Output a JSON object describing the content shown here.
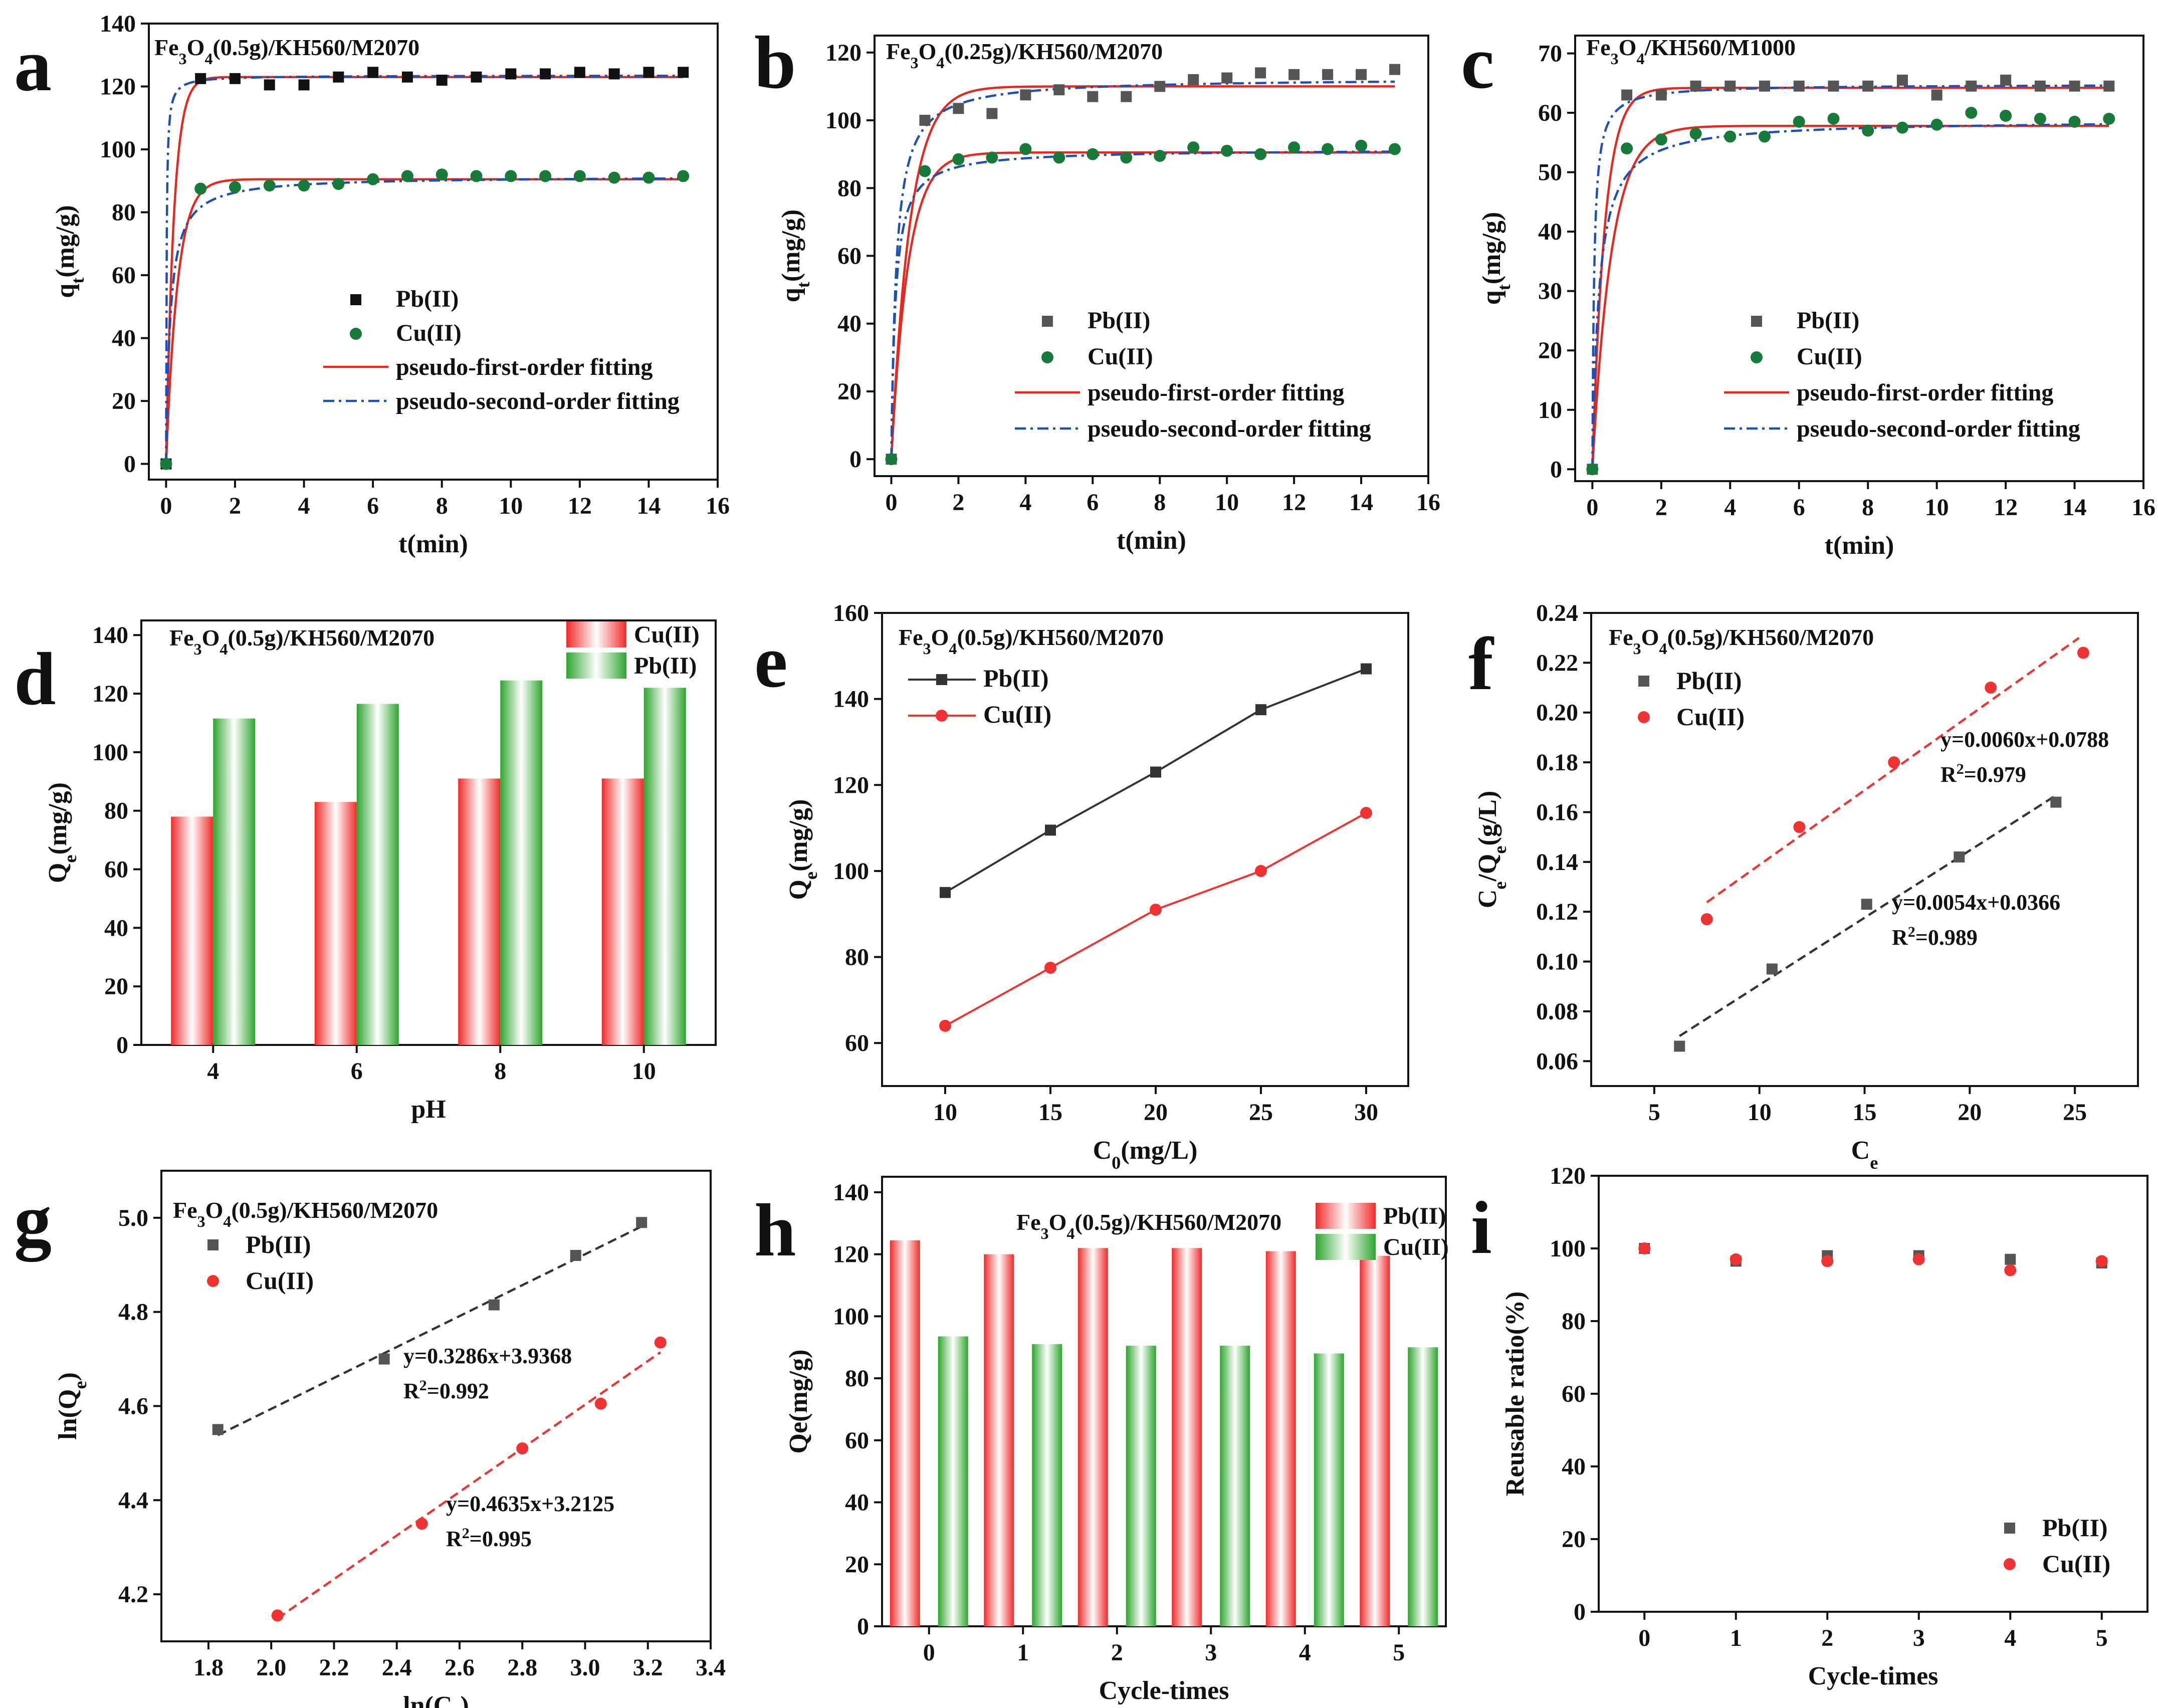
{
  "chart_data": [
    {
      "id": "a",
      "panel_letter": "a",
      "type": "scatter",
      "title_parts": [
        "Fe",
        "3",
        "O",
        "4",
        "(0.5g)/KH560/M2070"
      ],
      "xlabel": "t(min)",
      "ylabel_main": "q",
      "ylabel_sub": "t",
      "ylabel_end": "(mg/g)",
      "xlim": [
        -0.5,
        16
      ],
      "ylim": [
        -5,
        140
      ],
      "xticks": [
        0,
        2,
        4,
        6,
        8,
        10,
        12,
        14,
        16
      ],
      "yticks": [
        0,
        20,
        40,
        60,
        80,
        100,
        120,
        140
      ],
      "legend": [
        "Pb(II)",
        "Cu(II)",
        "pseudo-first-order fitting",
        "pseudo-second-order fitting"
      ],
      "series": [
        {
          "name": "Pb(II)",
          "marker": "square",
          "color": "#111111",
          "x": [
            0,
            1,
            2,
            3,
            4,
            5,
            6,
            7,
            8,
            9,
            10,
            11,
            12,
            13,
            14,
            15
          ],
          "y": [
            0,
            122.5,
            122.5,
            120.5,
            120.5,
            123,
            124.5,
            123,
            122,
            123,
            124,
            124,
            124.5,
            124,
            124.5,
            124.5
          ]
        },
        {
          "name": "Cu(II)",
          "marker": "circle",
          "color": "#177a3a",
          "x": [
            0,
            1,
            2,
            3,
            4,
            5,
            6,
            7,
            8,
            9,
            10,
            11,
            12,
            13,
            14,
            15
          ],
          "y": [
            0,
            87.5,
            88,
            88.5,
            88.5,
            89,
            90.5,
            91.5,
            92,
            91.5,
            91.5,
            91.5,
            91.5,
            91,
            91,
            91.5
          ]
        }
      ],
      "fits": [
        {
          "name": "pseudo-first-order fitting",
          "kind": "pfo",
          "qe": 123,
          "k": 4.5,
          "color": "#e8281e"
        },
        {
          "name": "pseudo-second-order fitting",
          "kind": "pso",
          "qe": 123.5,
          "k": 0.6,
          "color": "#1f4fb4"
        },
        {
          "name": "pseudo-first-order fitting",
          "kind": "pfo",
          "qe": 90.5,
          "k": 3.0,
          "color": "#e8281e"
        },
        {
          "name": "pseudo-second-order fitting",
          "kind": "pso",
          "qe": 91.5,
          "k": 0.09,
          "color": "#1f4fb4"
        }
      ]
    },
    {
      "id": "b",
      "panel_letter": "b",
      "type": "scatter",
      "title_parts": [
        "Fe",
        "3",
        "O",
        "4",
        "(0.25g)/KH560/M2070"
      ],
      "xlabel": "t(min)",
      "ylabel_main": "q",
      "ylabel_sub": "t",
      "ylabel_end": "(mg/g)",
      "xlim": [
        -0.5,
        16
      ],
      "ylim": [
        -5,
        125
      ],
      "xticks": [
        0,
        2,
        4,
        6,
        8,
        10,
        12,
        14,
        16
      ],
      "yticks": [
        0,
        20,
        40,
        60,
        80,
        100,
        120
      ],
      "legend": [
        "Pb(II)",
        "Cu(II)",
        "pseudo-first-order fitting",
        "pseudo-second-order fitting"
      ],
      "series": [
        {
          "name": "Pb(II)",
          "marker": "square",
          "color": "#555555",
          "x": [
            0,
            1,
            2,
            3,
            4,
            5,
            6,
            7,
            8,
            9,
            10,
            11,
            12,
            13,
            14,
            15
          ],
          "y": [
            0,
            100,
            103.5,
            102,
            107.5,
            109,
            107,
            107,
            110,
            112,
            112.5,
            114,
            113.5,
            113.5,
            113.5,
            115
          ]
        },
        {
          "name": "Cu(II)",
          "marker": "circle",
          "color": "#177a3a",
          "x": [
            0,
            1,
            2,
            3,
            4,
            5,
            6,
            7,
            8,
            9,
            10,
            11,
            12,
            13,
            14,
            15
          ],
          "y": [
            0,
            85,
            88.5,
            89,
            91.5,
            89,
            90,
            89,
            89.5,
            92,
            91,
            90,
            92,
            91.5,
            92.5,
            91.5
          ]
        }
      ],
      "fits": [
        {
          "name": "pseudo-first-order fitting",
          "kind": "pfo",
          "qe": 110,
          "k": 1.8,
          "color": "#e8281e"
        },
        {
          "name": "pseudo-second-order fitting",
          "kind": "pso",
          "qe": 112.5,
          "k": 0.06,
          "color": "#1f4fb4"
        },
        {
          "name": "pseudo-first-order fitting",
          "kind": "pfo",
          "qe": 90.5,
          "k": 2.0,
          "color": "#e8281e"
        },
        {
          "name": "pseudo-second-order fitting",
          "kind": "pso",
          "qe": 91.5,
          "k": 0.09,
          "color": "#1f4fb4"
        }
      ]
    },
    {
      "id": "c",
      "panel_letter": "c",
      "type": "scatter",
      "title_parts": [
        "Fe",
        "3",
        "O",
        "4",
        "/KH560/M1000"
      ],
      "xlabel": "t(min)",
      "ylabel_main": "q",
      "ylabel_sub": "t",
      "ylabel_end": "(mg/g)",
      "xlim": [
        -0.5,
        16
      ],
      "ylim": [
        -2,
        73
      ],
      "xticks": [
        0,
        2,
        4,
        6,
        8,
        10,
        12,
        14,
        16
      ],
      "yticks": [
        0,
        10,
        20,
        30,
        40,
        50,
        60,
        70
      ],
      "legend": [
        "Pb(II)",
        "Cu(II)",
        "pseudo-first-order fitting",
        "pseudo-second-order fitting"
      ],
      "series": [
        {
          "name": "Pb(II)",
          "marker": "square",
          "color": "#555555",
          "x": [
            0,
            1,
            2,
            3,
            4,
            5,
            6,
            7,
            8,
            9,
            10,
            11,
            12,
            13,
            14,
            15
          ],
          "y": [
            0,
            63,
            63,
            64.5,
            64.5,
            64.5,
            64.5,
            64.5,
            64.5,
            65.5,
            63,
            64.5,
            65.5,
            64.5,
            64.5,
            64.5
          ]
        },
        {
          "name": "Cu(II)",
          "marker": "circle",
          "color": "#177a3a",
          "x": [
            0,
            1,
            2,
            3,
            4,
            5,
            6,
            7,
            8,
            9,
            10,
            11,
            12,
            13,
            14,
            15
          ],
          "y": [
            0,
            54,
            55.5,
            56.5,
            56,
            56,
            58.5,
            59,
            57,
            57.5,
            58,
            60,
            59.5,
            59,
            58.5,
            59
          ]
        }
      ],
      "fits": [
        {
          "name": "pseudo-first-order fitting",
          "kind": "pfo",
          "qe": 64.2,
          "k": 2.8,
          "color": "#e8281e"
        },
        {
          "name": "pseudo-second-order fitting",
          "kind": "pso",
          "qe": 64.8,
          "k": 0.3,
          "color": "#1f4fb4"
        },
        {
          "name": "pseudo-first-order fitting",
          "kind": "pfo",
          "qe": 57.8,
          "k": 1.8,
          "color": "#e8281e"
        },
        {
          "name": "pseudo-second-order fitting",
          "kind": "pso",
          "qe": 58.8,
          "k": 0.09,
          "color": "#1f4fb4"
        }
      ]
    },
    {
      "id": "d",
      "panel_letter": "d",
      "type": "bar",
      "title_parts": [
        "Fe",
        "3",
        "O",
        "4",
        "(0.5g)/KH560/M2070"
      ],
      "xlabel": "pH",
      "ylabel_main": "Q",
      "ylabel_sub": "e",
      "ylabel_end": "(mg/g)",
      "categories": [
        "4",
        "6",
        "8",
        "10"
      ],
      "ylim": [
        0,
        145
      ],
      "yticks": [
        0,
        20,
        40,
        60,
        80,
        100,
        120,
        140
      ],
      "legend": [
        "Cu(II)",
        "Pb(II)"
      ],
      "series": [
        {
          "name": "Cu(II)",
          "color": "#f02a2a",
          "values": [
            78,
            83,
            91,
            91
          ]
        },
        {
          "name": "Pb(II)",
          "color": "#2ea52e",
          "values": [
            111.5,
            116.5,
            124.5,
            122
          ]
        }
      ]
    },
    {
      "id": "e",
      "panel_letter": "e",
      "type": "line",
      "title_parts": [
        "Fe",
        "3",
        "O",
        "4",
        "(0.5g)/KH560/M2070"
      ],
      "xlabel_main": "C",
      "xlabel_sub": "0",
      "xlabel_end": "(mg/L)",
      "ylabel_main": "Q",
      "ylabel_sub": "e",
      "ylabel_end": "(mg/g)",
      "xlim": [
        7,
        32
      ],
      "ylim": [
        50,
        160
      ],
      "xticks": [
        10,
        15,
        20,
        25,
        30
      ],
      "yticks": [
        60,
        80,
        100,
        120,
        140,
        160
      ],
      "legend": [
        "Pb(II)",
        "Cu(II)"
      ],
      "series": [
        {
          "name": "Pb(II)",
          "marker": "square",
          "color": "#333333",
          "x": [
            10,
            15,
            20,
            25,
            30
          ],
          "y": [
            95,
            109.5,
            123,
            137.5,
            147
          ]
        },
        {
          "name": "Cu(II)",
          "marker": "circle",
          "color": "#f03232",
          "x": [
            10,
            15,
            20,
            25,
            30
          ],
          "y": [
            64,
            77.5,
            91,
            100,
            113.5
          ]
        }
      ]
    },
    {
      "id": "f",
      "panel_letter": "f",
      "type": "scatter",
      "title_parts": [
        "Fe",
        "3",
        "O",
        "4",
        "(0.5g)/KH560/M2070"
      ],
      "xlabel_main": "C",
      "xlabel_sub": "e",
      "xlabel_end": "",
      "ylabel_main": "C",
      "ylabel_sub": "e",
      "ylabel_mid": "/Q",
      "ylabel_sub2": "e",
      "ylabel_end": "(g/L)",
      "xlim": [
        2,
        28
      ],
      "ylim": [
        0.05,
        0.24
      ],
      "xticks": [
        5,
        10,
        15,
        20,
        25
      ],
      "yticks": [
        0.06,
        0.08,
        0.1,
        0.12,
        0.14,
        0.16,
        0.18,
        0.2,
        0.22,
        0.24
      ],
      "ytick_labels": [
        "0.06",
        "0.08",
        "0.10",
        "0.12",
        "0.14",
        "0.16",
        "0.18",
        "0.20",
        "0.22",
        "0.24"
      ],
      "legend": [
        "Pb(II)",
        "Cu(II)"
      ],
      "series": [
        {
          "name": "Pb(II)",
          "marker": "square",
          "color": "#555555",
          "x": [
            6.2,
            10.6,
            15.1,
            19.5,
            24.1
          ],
          "y": [
            0.066,
            0.097,
            0.123,
            0.142,
            0.164
          ]
        },
        {
          "name": "Cu(II)",
          "marker": "circle",
          "color": "#f03232",
          "x": [
            7.5,
            11.9,
            16.4,
            21.0,
            25.4
          ],
          "y": [
            0.117,
            0.154,
            0.18,
            0.21,
            0.224
          ]
        }
      ],
      "fits": [
        {
          "name": "Pb(II) linear fit",
          "slope": 0.0054,
          "intercept": 0.0366,
          "x0": 6.2,
          "x1": 24.1,
          "color": "#333333"
        },
        {
          "name": "Cu(II) linear fit",
          "slope": 0.006,
          "intercept": 0.0788,
          "x0": 7.5,
          "x1": 25.2,
          "color": "#f03232"
        }
      ],
      "annotations": [
        {
          "eq": "y=0.0060x+0.0788",
          "r2": "0.979"
        },
        {
          "eq": "y=0.0054x+0.0366",
          "r2": "0.989"
        }
      ]
    },
    {
      "id": "g",
      "panel_letter": "g",
      "type": "scatter",
      "title_parts": [
        "Fe",
        "3",
        "O",
        "4",
        "(0.5g)/KH560/M2070"
      ],
      "xlabel_main": "ln(C",
      "xlabel_sub": "e",
      "xlabel_end": ")",
      "ylabel_main": "ln(Q",
      "ylabel_sub": "e",
      "ylabel_end": ")",
      "xlim": [
        1.65,
        3.4
      ],
      "ylim": [
        4.1,
        5.1
      ],
      "xticks": [
        1.8,
        2.0,
        2.2,
        2.4,
        2.6,
        2.8,
        3.0,
        3.2,
        3.4
      ],
      "xtick_labels": [
        "1.8",
        "2.0",
        "2.2",
        "2.4",
        "2.6",
        "2.8",
        "3.0",
        "3.2",
        "3.4"
      ],
      "yticks": [
        4.2,
        4.4,
        4.6,
        4.8,
        5.0
      ],
      "ytick_labels": [
        "4.2",
        "4.4",
        "4.6",
        "4.8",
        "5.0"
      ],
      "legend": [
        "Pb(II)",
        "Cu(II)"
      ],
      "series": [
        {
          "name": "Pb(II)",
          "marker": "square",
          "color": "#555555",
          "x": [
            1.83,
            2.36,
            2.71,
            2.97,
            3.18
          ],
          "y": [
            4.55,
            4.7,
            4.815,
            4.92,
            4.99
          ]
        },
        {
          "name": "Cu(II)",
          "marker": "circle",
          "color": "#f03232",
          "x": [
            2.02,
            2.48,
            2.8,
            3.05,
            3.24
          ],
          "y": [
            4.155,
            4.35,
            4.51,
            4.605,
            4.735
          ]
        }
      ],
      "fits": [
        {
          "name": "Pb(II) linear fit",
          "slope": 0.3286,
          "intercept": 3.9368,
          "x0": 1.83,
          "x1": 3.18,
          "color": "#333333"
        },
        {
          "name": "Cu(II) linear fit",
          "slope": 0.4635,
          "intercept": 3.2125,
          "x0": 2.02,
          "x1": 3.24,
          "color": "#f03232"
        }
      ],
      "annotations": [
        {
          "eq": "y=0.3286x+3.9368",
          "r2": "0.992"
        },
        {
          "eq": "y=0.4635x+3.2125",
          "r2": "0.995"
        }
      ]
    },
    {
      "id": "h",
      "panel_letter": "h",
      "type": "bar",
      "title_parts": [
        "Fe",
        "3",
        "O",
        "4",
        "(0.5g)/KH560/M2070"
      ],
      "xlabel": "Cycle-times",
      "ylabel_main": "Qe(mg/g)",
      "ylabel_sub": "",
      "ylabel_end": "",
      "categories": [
        "0",
        "1",
        "2",
        "3",
        "4",
        "5"
      ],
      "ylim": [
        0,
        145
      ],
      "yticks": [
        0,
        20,
        40,
        60,
        80,
        100,
        120,
        140
      ],
      "legend": [
        "Pb(II)",
        "Cu(II)"
      ],
      "series": [
        {
          "name": "Pb(II)",
          "color": "#f02a2a",
          "values": [
            124.5,
            120,
            122,
            122,
            121,
            119.5
          ]
        },
        {
          "name": "Cu(II)",
          "color": "#2ea52e",
          "values": [
            93.5,
            91,
            90.5,
            90.5,
            88,
            90
          ]
        }
      ]
    },
    {
      "id": "i",
      "panel_letter": "i",
      "type": "scatter",
      "title_parts": [],
      "xlabel": "Cycle-times",
      "ylabel_main": "Reusable ratio(%)",
      "ylabel_sub": "",
      "ylabel_end": "",
      "xlim": [
        -0.5,
        5.5
      ],
      "ylim": [
        0,
        120
      ],
      "xticks": [
        0,
        1,
        2,
        3,
        4,
        5
      ],
      "yticks": [
        0,
        20,
        40,
        60,
        80,
        100,
        120
      ],
      "legend": [
        "Pb(II)",
        "Cu(II)"
      ],
      "series": [
        {
          "name": "Pb(II)",
          "marker": "square",
          "color": "#555555",
          "x": [
            0,
            1,
            2,
            3,
            4,
            5
          ],
          "y": [
            100,
            96.5,
            98,
            98,
            97,
            96
          ]
        },
        {
          "name": "Cu(II)",
          "marker": "circle",
          "color": "#f03232",
          "x": [
            0,
            1,
            2,
            3,
            4,
            5
          ],
          "y": [
            100,
            97,
            96.5,
            97,
            94,
            96.5
          ]
        }
      ]
    }
  ]
}
